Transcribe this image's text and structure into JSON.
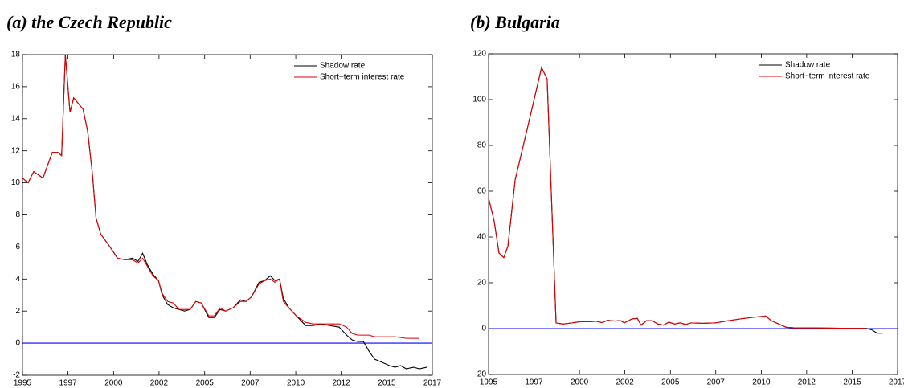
{
  "chart_data": [
    {
      "type": "line",
      "title": "(a) the Czech Republic",
      "legend": "upper right",
      "grid": false,
      "hline": 0,
      "hline_color": "#0000ff",
      "xlim": [
        1995,
        2017
      ],
      "xticks": [
        1995,
        {
          "value": 1997.44,
          "label": "1997"
        },
        {
          "value": 1999.89,
          "label": "2000"
        },
        {
          "value": 2002.33,
          "label": "2002"
        },
        {
          "value": 2004.78,
          "label": "2005"
        },
        {
          "value": 2007.22,
          "label": "2007"
        },
        {
          "value": 2009.67,
          "label": "2010"
        },
        {
          "value": 2012.11,
          "label": "2012"
        },
        {
          "value": 2014.56,
          "label": "2015"
        },
        2017
      ],
      "ylim": [
        -2,
        18
      ],
      "yticks": [
        -2,
        0,
        2,
        4,
        6,
        8,
        10,
        12,
        14,
        16,
        18
      ],
      "x": [
        1995.0,
        1995.3,
        1995.6,
        1996.1,
        1996.6,
        1996.9,
        1997.1,
        1997.3,
        1997.55,
        1997.75,
        1998.25,
        1998.5,
        1998.75,
        1998.95,
        1999.2,
        1999.7,
        2000.1,
        2000.5,
        2000.9,
        2001.2,
        2001.45,
        2001.7,
        2002.0,
        2002.3,
        2002.5,
        2002.8,
        2003.1,
        2003.4,
        2003.7,
        2004.0,
        2004.3,
        2004.6,
        2005.0,
        2005.3,
        2005.6,
        2005.9,
        2006.3,
        2006.7,
        2007.0,
        2007.3,
        2007.7,
        2008.0,
        2008.3,
        2008.55,
        2008.8,
        2009.0,
        2009.3,
        2009.7,
        2010.2,
        2010.6,
        2011.0,
        2011.5,
        2012.0,
        2012.4,
        2012.7,
        2013.0,
        2013.3,
        2013.6,
        2013.9,
        2014.3,
        2014.7,
        2015.0,
        2015.3,
        2015.6,
        2016.0,
        2016.3,
        2016.7
      ],
      "series": [
        {
          "name": "Shadow rate",
          "color": "#000000",
          "values": [
            10.3,
            10.0,
            10.7,
            10.3,
            11.9,
            11.9,
            11.7,
            18.0,
            14.4,
            15.3,
            14.6,
            13.2,
            10.6,
            7.8,
            6.8,
            6.0,
            5.3,
            5.2,
            5.3,
            5.1,
            5.6,
            4.9,
            4.3,
            3.9,
            3.0,
            2.4,
            2.2,
            2.1,
            2.0,
            2.1,
            2.6,
            2.5,
            1.6,
            1.6,
            2.1,
            2.0,
            2.2,
            2.7,
            2.6,
            2.9,
            3.8,
            3.9,
            4.2,
            3.9,
            4.0,
            2.8,
            2.2,
            1.7,
            1.1,
            1.1,
            1.2,
            1.1,
            1.0,
            0.5,
            0.2,
            0.1,
            0.1,
            -0.5,
            -1.0,
            -1.2,
            -1.4,
            -1.5,
            -1.4,
            -1.6,
            -1.5,
            -1.6,
            -1.5
          ]
        },
        {
          "name": "Short−term interest rate",
          "color": "#e00000",
          "values": [
            10.3,
            10.0,
            10.7,
            10.3,
            11.9,
            11.9,
            11.7,
            18.0,
            14.4,
            15.3,
            14.6,
            13.2,
            10.6,
            7.8,
            6.8,
            6.0,
            5.3,
            5.2,
            5.2,
            5.0,
            5.3,
            4.8,
            4.2,
            3.9,
            3.1,
            2.6,
            2.5,
            2.1,
            2.1,
            2.1,
            2.6,
            2.5,
            1.7,
            1.7,
            2.2,
            2.0,
            2.2,
            2.6,
            2.6,
            2.9,
            3.7,
            3.9,
            4.0,
            3.8,
            4.0,
            2.6,
            2.2,
            1.7,
            1.3,
            1.2,
            1.2,
            1.2,
            1.2,
            1.0,
            0.6,
            0.5,
            0.5,
            0.5,
            0.4,
            0.4,
            0.4,
            0.4,
            0.35,
            0.3,
            0.3,
            0.3,
            null
          ]
        }
      ]
    },
    {
      "type": "line",
      "title": "(b) Bulgaria",
      "legend": "upper right",
      "grid": false,
      "hline": 0,
      "hline_color": "#0000ff",
      "xlim": [
        1995,
        2017
      ],
      "xticks": [
        1995,
        {
          "value": 1997.44,
          "label": "1997"
        },
        {
          "value": 1999.89,
          "label": "2000"
        },
        {
          "value": 2002.33,
          "label": "2002"
        },
        {
          "value": 2004.78,
          "label": "2005"
        },
        {
          "value": 2007.22,
          "label": "2007"
        },
        {
          "value": 2009.67,
          "label": "2010"
        },
        {
          "value": 2012.11,
          "label": "2012"
        },
        {
          "value": 2014.56,
          "label": "2015"
        },
        2017
      ],
      "ylim": [
        -20,
        120
      ],
      "yticks": [
        -20,
        0,
        20,
        40,
        60,
        80,
        100,
        120
      ],
      "x": [
        1995.0,
        1995.3,
        1995.56,
        1995.82,
        1996.04,
        1996.43,
        1997.16,
        1997.85,
        1998.15,
        1998.63,
        1999.0,
        1999.5,
        1999.9,
        2000.4,
        2000.8,
        2001.1,
        2001.4,
        2001.8,
        2002.1,
        2002.3,
        2002.7,
        2003.0,
        2003.2,
        2003.5,
        2003.8,
        2004.1,
        2004.4,
        2004.7,
        2005.0,
        2005.3,
        2005.6,
        2005.9,
        2006.5,
        2007.2,
        2007.8,
        2008.6,
        2009.3,
        2009.9,
        2010.2,
        2010.6,
        2011.0,
        2011.5,
        2012.5,
        2013.5,
        2014.5,
        2015.3,
        2015.6,
        2015.9,
        2016.2
      ],
      "series": [
        {
          "name": "Shadow rate",
          "color": "#000000",
          "values": [
            57,
            47,
            33,
            31,
            36,
            65,
            90,
            114,
            109,
            2.5,
            2,
            2.5,
            3,
            3,
            3.2,
            2.6,
            3.6,
            3.3,
            3.5,
            2.5,
            4.2,
            4.5,
            1.5,
            3.5,
            3.5,
            2,
            1.5,
            2.8,
            2,
            2.5,
            1.8,
            2.5,
            2.3,
            2.5,
            3.3,
            4.3,
            5,
            5.5,
            3.5,
            2,
            0.6,
            0.3,
            0.3,
            0.2,
            0.1,
            0.1,
            -0.5,
            -2,
            -2
          ]
        },
        {
          "name": "Short−term interest rate",
          "color": "#e00000",
          "values": [
            57,
            47,
            33,
            31,
            36,
            65,
            90,
            114,
            109,
            2.5,
            2,
            2.5,
            3,
            3,
            3.2,
            2.6,
            3.6,
            3.3,
            3.5,
            2.5,
            4.2,
            4.5,
            1.5,
            3.5,
            3.5,
            2,
            1.5,
            2.8,
            2,
            2.5,
            1.8,
            2.5,
            2.3,
            2.5,
            3.3,
            4.3,
            5,
            5.5,
            3.5,
            2,
            0.6,
            0.3,
            0.3,
            0.2,
            0.1,
            0.1,
            null,
            null,
            null
          ]
        }
      ]
    }
  ]
}
